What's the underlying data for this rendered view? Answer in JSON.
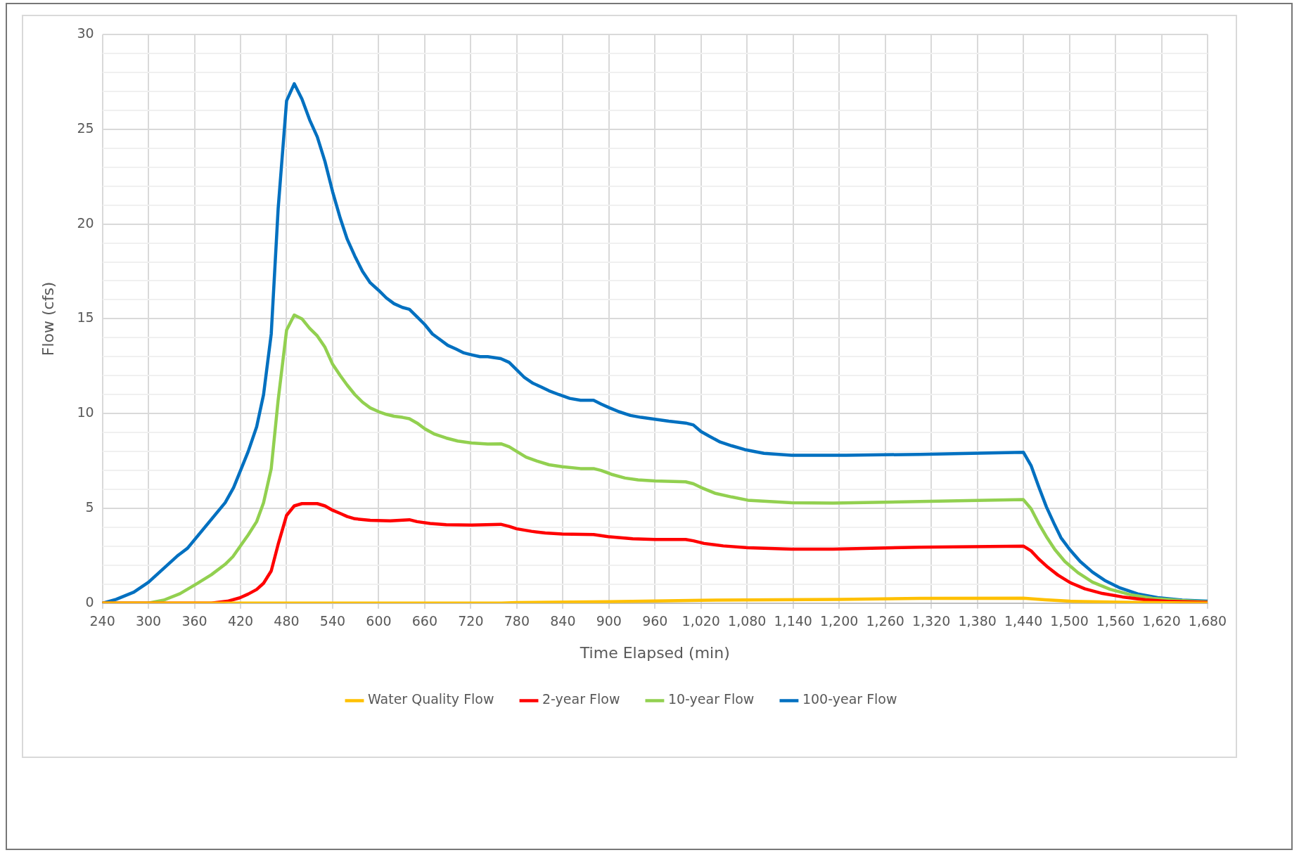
{
  "chart_data": {
    "type": "line",
    "xlabel": "Time Elapsed (min)",
    "ylabel": "Flow (cfs)",
    "xlim": [
      240,
      1680
    ],
    "xticks": [
      240,
      300,
      360,
      420,
      480,
      540,
      600,
      660,
      720,
      780,
      840,
      900,
      960,
      {
        "value": 1020,
        "label": "1,020"
      },
      {
        "value": 1080,
        "label": "1,080"
      },
      {
        "value": 1140,
        "label": "1,140"
      },
      {
        "value": 1200,
        "label": "1,200"
      },
      {
        "value": 1260,
        "label": "1,260"
      },
      {
        "value": 1320,
        "label": "1,320"
      },
      {
        "value": 1380,
        "label": "1,380"
      },
      {
        "value": 1440,
        "label": "1,440"
      },
      {
        "value": 1500,
        "label": "1,500"
      },
      {
        "value": 1560,
        "label": "1,560"
      },
      {
        "value": 1620,
        "label": "1,620"
      },
      {
        "value": 1680,
        "label": "1,680"
      }
    ],
    "ylim": [
      0,
      30
    ],
    "yticks": [
      0,
      {
        "value": 1,
        "label": null
      },
      {
        "value": 2,
        "label": null
      },
      {
        "value": 3,
        "label": null
      },
      {
        "value": 4,
        "label": null
      },
      5,
      {
        "value": 6,
        "label": null
      },
      {
        "value": 7,
        "label": null
      },
      {
        "value": 8,
        "label": null
      },
      {
        "value": 9,
        "label": null
      },
      10,
      {
        "value": 11,
        "label": null
      },
      {
        "value": 12,
        "label": null
      },
      {
        "value": 13,
        "label": null
      },
      {
        "value": 14,
        "label": null
      },
      15,
      {
        "value": 16,
        "label": null
      },
      {
        "value": 17,
        "label": null
      },
      {
        "value": 18,
        "label": null
      },
      {
        "value": 19,
        "label": null
      },
      20,
      {
        "value": 21,
        "label": null
      },
      {
        "value": 22,
        "label": null
      },
      {
        "value": 23,
        "label": null
      },
      {
        "value": 24,
        "label": null
      },
      25,
      {
        "value": 26,
        "label": null
      },
      {
        "value": 27,
        "label": null
      },
      {
        "value": 28,
        "label": null
      },
      {
        "value": 29,
        "label": null
      },
      30
    ],
    "grid": true,
    "legend": "bottom",
    "marker": "none",
    "line_style": "solid",
    "series": [
      {
        "name": "Water Quality Flow",
        "color": "#ffc000",
        "x": [
          240,
          760,
          780,
          900,
          1020,
          1200,
          1305,
          1440,
          1468,
          1501,
          1566,
          1680
        ],
        "values": [
          0,
          0,
          0.03,
          0.08,
          0.15,
          0.2,
          0.25,
          0.26,
          0.18,
          0.1,
          0.05,
          0
        ]
      },
      {
        "name": "2-year Flow",
        "color": "#ff0000",
        "x": [
          240,
          382,
          403,
          419,
          430,
          441,
          450,
          460,
          469,
          480,
          490,
          500,
          520,
          530,
          540,
          550,
          559,
          569,
          589,
          615,
          640,
          650,
          667,
          688,
          721,
          759,
          770,
          780,
          799,
          817,
          839,
          880,
          899,
          931,
          960,
          1000,
          1010,
          1024,
          1049,
          1081,
          1138,
          1192,
          1305,
          1440,
          1450,
          1460,
          1472,
          1485,
          1501,
          1520,
          1543,
          1569,
          1599,
          1631,
          1680
        ],
        "values": [
          0,
          0,
          0.1,
          0.28,
          0.48,
          0.72,
          1.05,
          1.7,
          3.1,
          4.63,
          5.13,
          5.25,
          5.25,
          5.13,
          4.9,
          4.73,
          4.57,
          4.45,
          4.37,
          4.34,
          4.4,
          4.3,
          4.2,
          4.14,
          4.12,
          4.16,
          4.05,
          3.92,
          3.79,
          3.7,
          3.65,
          3.62,
          3.51,
          3.4,
          3.36,
          3.36,
          3.29,
          3.15,
          3.02,
          2.92,
          2.85,
          2.85,
          2.95,
          3.01,
          2.76,
          2.33,
          1.89,
          1.48,
          1.08,
          0.76,
          0.51,
          0.33,
          0.18,
          0.09,
          0.04
        ]
      },
      {
        "name": "10-year Flow",
        "color": "#92d050",
        "x": [
          240,
          300,
          320,
          341,
          362,
          382,
          400,
          410,
          430,
          441,
          450,
          460,
          469,
          480,
          490,
          500,
          510,
          520,
          530,
          540,
          550,
          559,
          569,
          579,
          589,
          600,
          610,
          620,
          631,
          640,
          650,
          660,
          672,
          688,
          703,
          721,
          742,
          760,
          770,
          780,
          792,
          806,
          822,
          839,
          863,
          880,
          890,
          903,
          921,
          938,
          960,
          1000,
          1010,
          1020,
          1038,
          1060,
          1081,
          1138,
          1192,
          1305,
          1440,
          1450,
          1460,
          1470,
          1481,
          1494,
          1511,
          1530,
          1553,
          1579,
          1608,
          1644,
          1680
        ],
        "values": [
          0,
          0,
          0.16,
          0.5,
          1.0,
          1.5,
          2.05,
          2.45,
          3.6,
          4.3,
          5.3,
          7.1,
          10.7,
          14.4,
          15.2,
          15.0,
          14.5,
          14.1,
          13.5,
          12.6,
          12.0,
          11.5,
          11.0,
          10.6,
          10.3,
          10.1,
          9.96,
          9.86,
          9.8,
          9.73,
          9.5,
          9.2,
          8.93,
          8.71,
          8.55,
          8.45,
          8.39,
          8.4,
          8.25,
          8.0,
          7.7,
          7.5,
          7.3,
          7.2,
          7.1,
          7.1,
          7.0,
          6.8,
          6.6,
          6.5,
          6.45,
          6.4,
          6.3,
          6.1,
          5.8,
          5.6,
          5.43,
          5.3,
          5.28,
          5.36,
          5.46,
          4.98,
          4.2,
          3.51,
          2.83,
          2.2,
          1.61,
          1.11,
          0.73,
          0.45,
          0.25,
          0.14,
          0.07
        ]
      },
      {
        "name": "100-year Flow",
        "color": "#0070c0",
        "x": [
          240,
          258,
          281,
          300,
          338,
          351,
          400,
          411,
          430,
          441,
          450,
          460,
          469,
          480,
          490,
          500,
          510,
          520,
          530,
          540,
          550,
          559,
          569,
          579,
          589,
          600,
          610,
          620,
          631,
          640,
          650,
          660,
          670,
          680,
          690,
          701,
          711,
          721,
          732,
          742,
          759,
          770,
          780,
          790,
          801,
          812,
          822,
          835,
          849,
          863,
          880,
          890,
          901,
          913,
          928,
          942,
          960,
          978,
          1000,
          1010,
          1020,
          1031,
          1045,
          1060,
          1077,
          1102,
          1138,
          1174,
          1209,
          1305,
          1440,
          1450,
          1460,
          1470,
          1480,
          1489,
          1501,
          1514,
          1530,
          1546,
          1566,
          1589,
          1615,
          1647,
          1680
        ],
        "values": [
          0,
          0.2,
          0.58,
          1.1,
          2.5,
          2.9,
          5.3,
          6.1,
          8.0,
          9.3,
          11.0,
          14.2,
          20.8,
          26.5,
          27.4,
          26.6,
          25.5,
          24.6,
          23.3,
          21.7,
          20.3,
          19.2,
          18.3,
          17.5,
          16.9,
          16.5,
          16.1,
          15.8,
          15.6,
          15.5,
          15.1,
          14.7,
          14.2,
          13.9,
          13.6,
          13.4,
          13.2,
          13.1,
          13.0,
          13.0,
          12.9,
          12.7,
          12.3,
          11.9,
          11.6,
          11.4,
          11.2,
          11.0,
          10.8,
          10.7,
          10.7,
          10.5,
          10.3,
          10.1,
          9.9,
          9.8,
          9.7,
          9.6,
          9.5,
          9.4,
          9.05,
          8.8,
          8.5,
          8.3,
          8.1,
          7.9,
          7.8,
          7.8,
          7.8,
          7.85,
          7.96,
          7.26,
          6.14,
          5.08,
          4.2,
          3.45,
          2.8,
          2.2,
          1.64,
          1.2,
          0.8,
          0.49,
          0.29,
          0.16,
          0.1
        ]
      }
    ]
  }
}
